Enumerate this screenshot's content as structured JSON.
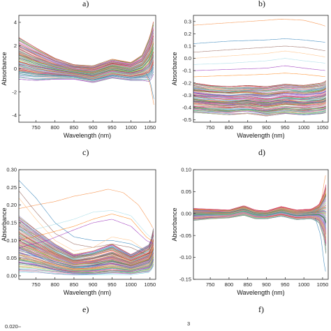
{
  "panel_letters": [
    "a)",
    "b)",
    "c)",
    "d)",
    "e)",
    "f)"
  ],
  "partial_tick_labels": [
    "0.020",
    "3"
  ],
  "chart_data": [
    {
      "panel": "c)",
      "type": "line",
      "xlabel": "Wavelength (nm)",
      "ylabel": "Absorbance",
      "xlim": [
        705,
        1065
      ],
      "ylim": [
        -4.6,
        4.6
      ],
      "xticks": [
        750,
        800,
        850,
        900,
        950,
        1000,
        1050
      ],
      "yticks": [
        -4,
        -2,
        0,
        2,
        4
      ],
      "ytick_labels": [
        "-4",
        "-2",
        "0",
        "2",
        "4"
      ],
      "grid": false,
      "band": {
        "x": [
          705,
          750,
          800,
          850,
          900,
          950,
          1000,
          1030,
          1050,
          1060
        ],
        "upper": [
          2.7,
          1.8,
          0.9,
          0.35,
          0.25,
          0.85,
          0.55,
          1.2,
          2.8,
          4.2
        ],
        "lower": [
          -0.9,
          -1.0,
          -0.9,
          -0.9,
          -1.2,
          -0.8,
          -1.0,
          -1.0,
          -1.1,
          -0.4
        ]
      },
      "mean": [
        0.6,
        0.3,
        0.0,
        -0.3,
        -0.5,
        0.1,
        -0.3,
        0.1,
        0.8,
        2.6
      ],
      "outliers": [
        {
          "x": [
            1040,
            1050,
            1060
          ],
          "y": [
            -0.6,
            -1.2,
            -3.1
          ]
        },
        {
          "x": [
            1040,
            1050,
            1060
          ],
          "y": [
            -0.4,
            -1.0,
            -2.6
          ]
        }
      ]
    },
    {
      "panel": "d)",
      "type": "line",
      "xlabel": "Wavelength (nm)",
      "ylabel": "Absorbance",
      "xlim": [
        705,
        1065
      ],
      "ylim": [
        -0.52,
        0.35
      ],
      "xticks": [
        750,
        800,
        850,
        900,
        950,
        1000,
        1050
      ],
      "yticks": [
        -0.5,
        -0.4,
        -0.3,
        -0.2,
        -0.1,
        0.0,
        0.1,
        0.2,
        0.3
      ],
      "ytick_labels": [
        "-0.5",
        "-0.4",
        "-0.3",
        "-0.2",
        "-0.1",
        "0.0",
        "0.1",
        "0.2",
        "0.3"
      ],
      "grid": false,
      "band": {
        "x": [
          705,
          750,
          800,
          850,
          900,
          950,
          1000,
          1050,
          1060
        ],
        "upper": [
          -0.2,
          -0.22,
          -0.23,
          -0.22,
          -0.23,
          -0.21,
          -0.22,
          -0.2,
          -0.18
        ],
        "lower": [
          -0.44,
          -0.45,
          -0.46,
          -0.45,
          -0.47,
          -0.45,
          -0.46,
          -0.45,
          -0.44
        ]
      },
      "mean": [
        -0.32,
        -0.33,
        -0.34,
        -0.33,
        -0.35,
        -0.33,
        -0.34,
        -0.32,
        -0.31
      ],
      "outliers": [
        {
          "x": [
            705,
            800,
            900,
            940,
            1000,
            1040,
            1060
          ],
          "y": [
            0.27,
            0.29,
            0.31,
            0.32,
            0.31,
            0.28,
            0.26
          ]
        },
        {
          "x": [
            705,
            800,
            900,
            950,
            1000,
            1060
          ],
          "y": [
            0.12,
            0.14,
            0.15,
            0.16,
            0.15,
            0.13
          ]
        },
        {
          "x": [
            705,
            800,
            900,
            950,
            1000,
            1060
          ],
          "y": [
            0.05,
            0.07,
            0.09,
            0.1,
            0.09,
            0.06
          ]
        },
        {
          "x": [
            705,
            800,
            900,
            950,
            1000,
            1060
          ],
          "y": [
            0.0,
            0.02,
            0.04,
            0.06,
            0.04,
            0.01
          ]
        },
        {
          "x": [
            705,
            800,
            900,
            950,
            1000,
            1060
          ],
          "y": [
            -0.05,
            -0.04,
            -0.02,
            0.0,
            -0.02,
            -0.04
          ]
        },
        {
          "x": [
            705,
            800,
            900,
            950,
            1000,
            1060
          ],
          "y": [
            -0.1,
            -0.09,
            -0.08,
            -0.06,
            -0.08,
            -0.1
          ]
        },
        {
          "x": [
            705,
            800,
            900,
            950,
            1000,
            1060
          ],
          "y": [
            -0.15,
            -0.14,
            -0.13,
            -0.12,
            -0.13,
            -0.15
          ]
        }
      ]
    },
    {
      "panel": "e)",
      "type": "line",
      "xlabel": "Wavelength (nm)",
      "ylabel": "Absorbance",
      "xlim": [
        705,
        1065
      ],
      "ylim": [
        -0.01,
        0.3
      ],
      "xticks": [
        750,
        800,
        850,
        900,
        950,
        1000,
        1050
      ],
      "yticks": [
        0.0,
        0.05,
        0.1,
        0.15,
        0.2,
        0.25,
        0.3
      ],
      "ytick_labels": [
        "0.00",
        "0.05",
        "0.10",
        "0.15",
        "0.20",
        "0.25",
        "0.30"
      ],
      "grid": false,
      "band": {
        "x": [
          705,
          750,
          800,
          850,
          900,
          950,
          1000,
          1050,
          1060
        ],
        "upper": [
          0.17,
          0.13,
          0.09,
          0.06,
          0.07,
          0.09,
          0.06,
          0.09,
          0.14
        ],
        "lower": [
          0.01,
          0.01,
          0.005,
          0.002,
          0.002,
          0.004,
          0.003,
          0.01,
          0.03
        ]
      },
      "mean": [
        0.07,
        0.05,
        0.035,
        0.02,
        0.025,
        0.04,
        0.03,
        0.045,
        0.07
      ],
      "outliers": [
        {
          "x": [
            705,
            750,
            800,
            850,
            900,
            940,
            980,
            1020,
            1050,
            1060
          ],
          "y": [
            0.19,
            0.2,
            0.21,
            0.225,
            0.235,
            0.245,
            0.235,
            0.2,
            0.15,
            0.13
          ]
        },
        {
          "x": [
            705,
            750,
            800,
            850,
            900,
            950,
            1000,
            1040,
            1060
          ],
          "y": [
            0.27,
            0.22,
            0.15,
            0.11,
            0.1,
            0.1,
            0.09,
            0.07,
            0.08
          ]
        },
        {
          "x": [
            705,
            750,
            800,
            850,
            900,
            950,
            1000,
            1040,
            1060
          ],
          "y": [
            0.24,
            0.18,
            0.12,
            0.09,
            0.08,
            0.09,
            0.08,
            0.06,
            0.07
          ]
        },
        {
          "x": [
            705,
            750,
            800,
            850,
            900,
            950,
            1000,
            1040,
            1060
          ],
          "y": [
            0.22,
            0.16,
            0.1,
            0.07,
            0.08,
            0.11,
            0.1,
            0.07,
            0.08
          ]
        },
        {
          "x": [
            705,
            780,
            850,
            900,
            950,
            1000,
            1040,
            1060
          ],
          "y": [
            0.12,
            0.14,
            0.16,
            0.18,
            0.185,
            0.17,
            0.12,
            0.1
          ]
        },
        {
          "x": [
            705,
            780,
            850,
            900,
            950,
            1000,
            1040,
            1060
          ],
          "y": [
            0.08,
            0.1,
            0.13,
            0.15,
            0.16,
            0.14,
            0.1,
            0.09
          ]
        },
        {
          "x": [
            705,
            780,
            850,
            900,
            950,
            1000,
            1040,
            1060
          ],
          "y": [
            0.1,
            0.12,
            0.14,
            0.16,
            0.175,
            0.16,
            0.11,
            0.095
          ]
        }
      ]
    },
    {
      "panel": "f)",
      "type": "line",
      "xlabel": "Wavelength (nm)",
      "ylabel": "Absorbance",
      "xlim": [
        705,
        1065
      ],
      "ylim": [
        -0.15,
        0.1
      ],
      "xticks": [
        750,
        800,
        850,
        900,
        950,
        1000,
        1050
      ],
      "yticks": [
        -0.15,
        -0.1,
        -0.05,
        0.0,
        0.05,
        0.1
      ],
      "ytick_labels": [
        "-0.15",
        "-0.10",
        "-0.05",
        "0.00",
        "0.05",
        "0.10"
      ],
      "grid": false,
      "band": {
        "x": [
          705,
          750,
          800,
          840,
          870,
          900,
          940,
          980,
          1020,
          1040,
          1055,
          1060
        ],
        "upper": [
          0.012,
          0.01,
          0.008,
          0.018,
          0.008,
          0.006,
          0.016,
          0.008,
          0.01,
          0.02,
          0.05,
          0.07
        ],
        "lower": [
          -0.016,
          -0.012,
          -0.01,
          -0.004,
          -0.012,
          -0.012,
          -0.006,
          -0.014,
          -0.012,
          -0.02,
          -0.06,
          -0.1
        ]
      },
      "mean": [
        -0.002,
        -0.001,
        -0.001,
        0.007,
        -0.002,
        -0.003,
        0.005,
        -0.003,
        -0.001,
        0.0,
        -0.005,
        -0.015
      ],
      "outliers": [
        {
          "x": [
            1030,
            1045,
            1055,
            1060
          ],
          "y": [
            0.0,
            0.02,
            0.075,
            0.095
          ]
        },
        {
          "x": [
            1030,
            1045,
            1055,
            1060
          ],
          "y": [
            -0.01,
            -0.05,
            -0.12,
            -0.14
          ]
        }
      ]
    }
  ]
}
